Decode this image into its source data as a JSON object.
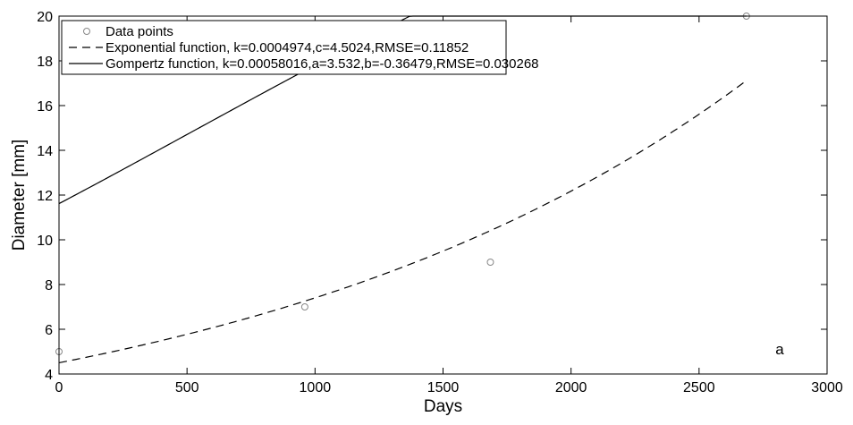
{
  "chart_data": {
    "type": "line",
    "title": "",
    "xlabel": "Days",
    "ylabel": "Diameter [mm]",
    "xlim": [
      0,
      3000
    ],
    "ylim": [
      4,
      20
    ],
    "xticks": [
      0,
      500,
      1000,
      1500,
      2000,
      2500,
      3000
    ],
    "yticks": [
      4,
      6,
      8,
      10,
      12,
      14,
      16,
      18,
      20
    ],
    "grid": false,
    "legend_position": "top-left",
    "panel_label": "a",
    "series": [
      {
        "name": "Data points",
        "style": "markers-circle",
        "color": "#888888",
        "x": [
          0,
          960,
          1685,
          2685
        ],
        "y": [
          5,
          7,
          9,
          20
        ]
      },
      {
        "name": "Exponential function, k=0.0004974,c=4.5024,RMSE=0.11852",
        "style": "dashed",
        "color": "#000000",
        "function": "exponential",
        "params": {
          "k": 0.0004974,
          "c": 4.5024
        },
        "x_range": [
          0,
          2685
        ]
      },
      {
        "name": "Gompertz function, k=0.00058016,a=3.532,b=-0.36479,RMSE=0.030268",
        "style": "solid",
        "color": "#000000",
        "function": "gompertz",
        "params": {
          "k": 0.00058016,
          "a": 3.532,
          "b": -0.36479
        },
        "x_range": [
          0,
          2685
        ]
      }
    ]
  }
}
